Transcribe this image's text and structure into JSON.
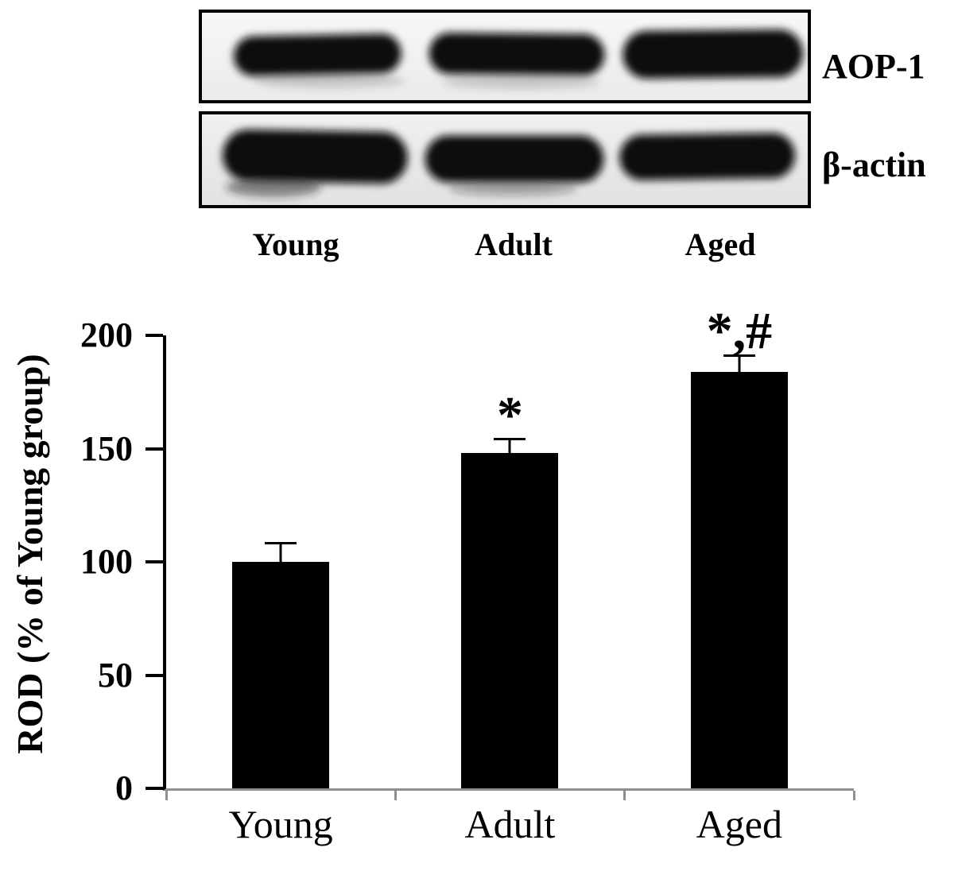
{
  "blot": {
    "rows": [
      {
        "label": "AOP-1"
      },
      {
        "label": "β-actin"
      }
    ],
    "lanes": [
      "Young",
      "Adult",
      "Aged"
    ]
  },
  "chart_data": {
    "type": "bar",
    "categories": [
      "Young",
      "Adult",
      "Aged"
    ],
    "values": [
      100,
      148,
      184
    ],
    "errors": [
      8,
      6,
      7
    ],
    "annotations": [
      "",
      "*",
      "*,#"
    ],
    "title": "",
    "xlabel": "",
    "ylabel": "ROD (% of Young group)",
    "yticks": [
      0,
      50,
      100,
      150,
      200
    ],
    "ylim": [
      0,
      200
    ],
    "grid": false,
    "legend": false,
    "bar_color": "#000000"
  }
}
